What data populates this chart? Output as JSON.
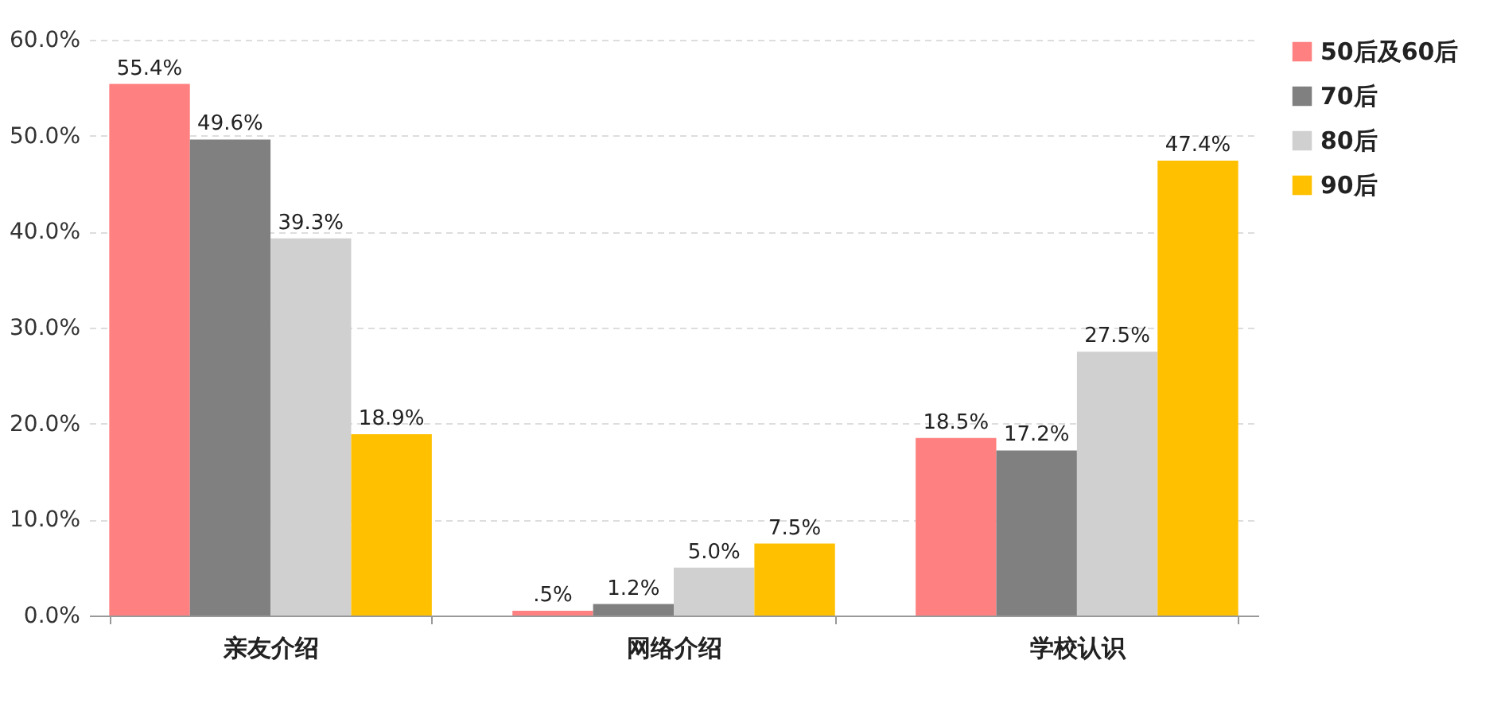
{
  "chart_data": {
    "type": "bar",
    "categories": [
      "亲友介绍",
      "网络介绍",
      "学校认识"
    ],
    "series": [
      {
        "name": "50后及60后",
        "color": "#ff8080",
        "values": [
          55.4,
          0.5,
          18.5
        ],
        "value_labels": [
          "55.4%",
          ".5%",
          "18.5%"
        ]
      },
      {
        "name": "70后",
        "color": "#808080",
        "values": [
          49.6,
          1.2,
          17.2
        ],
        "value_labels": [
          "49.6%",
          "1.2%",
          "17.2%"
        ]
      },
      {
        "name": "80后",
        "color": "#d0d0d0",
        "values": [
          39.3,
          5.0,
          27.5
        ],
        "value_labels": [
          "39.3%",
          "5.0%",
          "27.5%"
        ]
      },
      {
        "name": "90后",
        "color": "#ffc000",
        "values": [
          18.9,
          7.5,
          47.4
        ],
        "value_labels": [
          "18.9%",
          "7.5%",
          "47.4%"
        ]
      }
    ],
    "ylim": [
      0,
      60
    ],
    "yticks": [
      {
        "value": 0,
        "label": "0.0%"
      },
      {
        "value": 10,
        "label": "10.0%"
      },
      {
        "value": 20,
        "label": "20.0%"
      },
      {
        "value": 30,
        "label": "30.0%"
      },
      {
        "value": 40,
        "label": "40.0%"
      },
      {
        "value": 50,
        "label": "50.0%"
      },
      {
        "value": 60,
        "label": "60.0%"
      }
    ],
    "grid": "y",
    "legend": "top right"
  }
}
